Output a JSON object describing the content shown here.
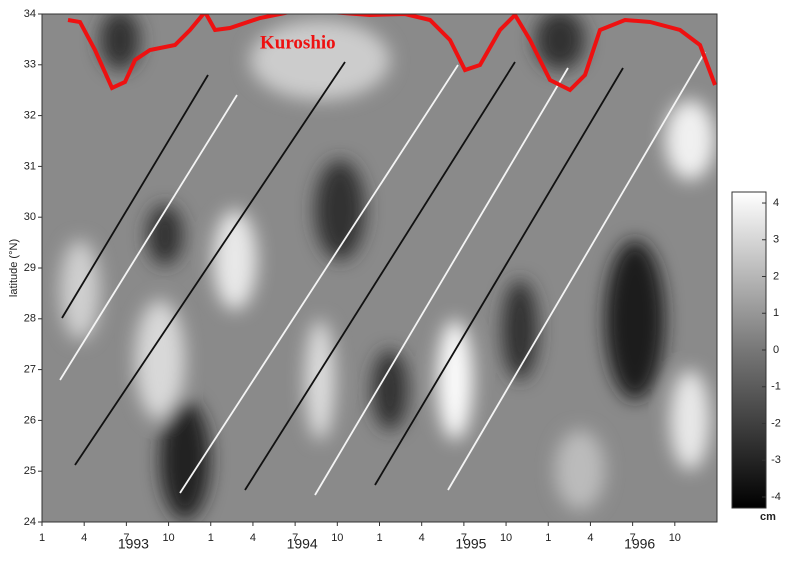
{
  "chart_data": {
    "type": "contour",
    "annotation": "Kuroshio",
    "ylabel": "latitude (°N)",
    "ylim": [
      24,
      34
    ],
    "yticks": [
      24,
      25,
      26,
      27,
      28,
      29,
      30,
      31,
      32,
      33,
      34
    ],
    "categories": [
      "1",
      "4",
      "7",
      "10",
      "1",
      "4",
      "7",
      "10",
      "1",
      "4",
      "7",
      "10",
      "1",
      "4",
      "7",
      "10"
    ],
    "years": [
      "1993",
      "1994",
      "1995",
      "1996"
    ],
    "colorbar": {
      "lim": [
        -4.3,
        4.3
      ],
      "ticks": [
        4,
        3,
        2,
        1,
        0,
        -1,
        -2,
        -3,
        -4
      ],
      "unit": "cm"
    }
  }
}
